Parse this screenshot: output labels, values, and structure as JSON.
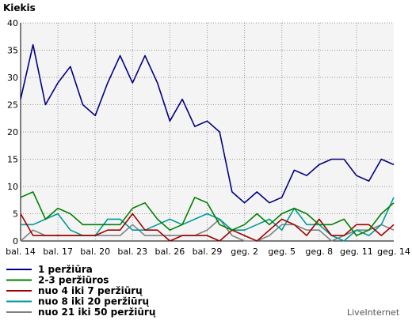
{
  "chart_data": {
    "type": "line",
    "title": "Kiekis",
    "xlabel": "",
    "ylabel": "",
    "ylim": [
      0,
      40
    ],
    "y_ticks": [
      0,
      5,
      10,
      15,
      20,
      25,
      30,
      35,
      40
    ],
    "x_tick_labels": [
      "bal. 14",
      "bal. 17",
      "bal. 20",
      "bal. 23",
      "bal. 26",
      "bal. 29",
      "geg. 2",
      "geg. 5",
      "geg. 8",
      "geg. 11",
      "geg. 14"
    ],
    "x": [
      "bal. 14",
      "bal. 15",
      "bal. 16",
      "bal. 17",
      "bal. 18",
      "bal. 19",
      "bal. 20",
      "bal. 21",
      "bal. 22",
      "bal. 23",
      "bal. 24",
      "bal. 25",
      "bal. 26",
      "bal. 27",
      "bal. 28",
      "bal. 29",
      "bal. 30",
      "geg. 1",
      "geg. 2",
      "geg. 3",
      "geg. 4",
      "geg. 5",
      "geg. 6",
      "geg. 7",
      "geg. 8",
      "geg. 9",
      "geg. 10",
      "geg. 11",
      "geg. 12",
      "geg. 13",
      "geg. 14"
    ],
    "grid": true,
    "legend_position": "bottom-left",
    "series": [
      {
        "name": "1 peržiūra",
        "color": "#000080",
        "values": [
          26,
          36,
          25,
          29,
          32,
          25,
          23,
          29,
          34,
          29,
          34,
          29,
          22,
          26,
          21,
          22,
          20,
          9,
          7,
          9,
          7,
          8,
          13,
          12,
          14,
          15,
          15,
          12,
          11,
          15,
          14
        ]
      },
      {
        "name": "2-3 peržiūros",
        "color": "#008000",
        "values": [
          8,
          9,
          4,
          6,
          5,
          3,
          3,
          3,
          3,
          6,
          7,
          4,
          2,
          3,
          8,
          7,
          3,
          2,
          3,
          5,
          3,
          5,
          6,
          5,
          3,
          3,
          4,
          1,
          2,
          5,
          7
        ]
      },
      {
        "name": "nuo 4 iki 7 peržiūrų",
        "color": "#a00000",
        "values": [
          5,
          1,
          1,
          1,
          1,
          1,
          1,
          2,
          2,
          5,
          2,
          2,
          0,
          1,
          1,
          1,
          0,
          2,
          1,
          0,
          2,
          4,
          3,
          1,
          4,
          1,
          1,
          3,
          3,
          1,
          3
        ]
      },
      {
        "name": "nuo 8 iki 20 peržiūrų",
        "color": "#009999",
        "values": [
          3,
          3,
          4,
          5,
          2,
          1,
          1,
          4,
          4,
          2,
          2,
          3,
          4,
          3,
          4,
          5,
          4,
          2,
          2,
          3,
          4,
          2,
          6,
          3,
          3,
          1,
          0,
          2,
          1,
          3,
          8
        ]
      },
      {
        "name": "nuo 21 iki 50 peržiūrų",
        "color": "#808080",
        "values": [
          0,
          2,
          1,
          1,
          1,
          1,
          1,
          1,
          1,
          3,
          1,
          1,
          1,
          1,
          1,
          2,
          4,
          1,
          0,
          0,
          1,
          3,
          3,
          2,
          2,
          0,
          1,
          2,
          2,
          3,
          2
        ]
      }
    ]
  },
  "watermark": "LiveInternet"
}
